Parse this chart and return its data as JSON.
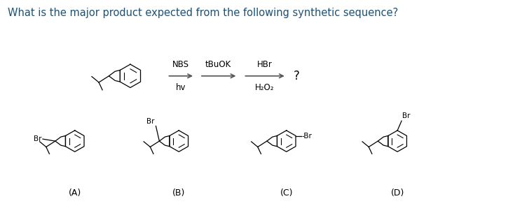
{
  "title": "What is the major product expected from the following synthetic sequence?",
  "title_color": "#1a5276",
  "title_fontsize": 10.5,
  "background_color": "#ffffff",
  "arrow_color": "#555555",
  "labels": [
    "(A)",
    "(B)",
    "(C)",
    "(D)"
  ],
  "label_fontsize": 9,
  "reagent_fontsize": 8.5
}
